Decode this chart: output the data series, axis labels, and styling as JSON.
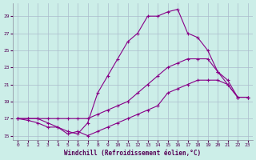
{
  "xlabel": "Windchill (Refroidissement éolien,°C)",
  "bg_color": "#cceee8",
  "grid_color": "#aabbcc",
  "line_color": "#880088",
  "xlim": [
    -0.5,
    23.5
  ],
  "ylim": [
    14.5,
    30.5
  ],
  "yticks": [
    15,
    17,
    19,
    21,
    23,
    25,
    27,
    29
  ],
  "xticks": [
    0,
    1,
    2,
    3,
    4,
    5,
    6,
    7,
    8,
    9,
    10,
    11,
    12,
    13,
    14,
    15,
    16,
    17,
    18,
    19,
    20,
    21,
    22,
    23
  ],
  "series": [
    {
      "x": [
        0,
        1,
        2,
        3,
        4,
        5,
        6,
        7,
        8,
        9,
        10,
        11,
        12,
        13,
        14,
        15,
        16,
        17,
        18,
        19,
        20,
        21,
        22,
        23
      ],
      "y": [
        17,
        17,
        17,
        16.5,
        16,
        15.5,
        15.2,
        16.5,
        20,
        22,
        24,
        26,
        27,
        29,
        29,
        29.5,
        29.8,
        27,
        26.5,
        25,
        22.5,
        21,
        19.5,
        19.5
      ]
    },
    {
      "x": [
        0,
        1,
        2,
        3,
        4,
        5,
        6,
        7,
        8,
        9,
        10,
        11,
        12,
        13,
        14,
        15,
        16,
        17,
        18,
        19,
        20,
        21,
        22,
        23
      ],
      "y": [
        17,
        17,
        17,
        17,
        17,
        17,
        17,
        17,
        17.5,
        18,
        18.5,
        19,
        20,
        21,
        22,
        23,
        23.5,
        24,
        24,
        24,
        22.5,
        21.5,
        19.5,
        19.5
      ]
    },
    {
      "x": [
        0,
        1,
        2,
        3,
        4,
        5,
        6,
        7,
        8,
        9,
        10,
        11,
        12,
        13,
        14,
        15,
        16,
        17,
        18,
        19,
        20,
        21,
        22,
        23
      ],
      "y": [
        17,
        16.8,
        16.5,
        16,
        16,
        15.2,
        15.5,
        15,
        15.5,
        16,
        16.5,
        17,
        17.5,
        18,
        18.5,
        20,
        20.5,
        21,
        21.5,
        21.5,
        21.5,
        21,
        19.5,
        19.5
      ]
    }
  ]
}
